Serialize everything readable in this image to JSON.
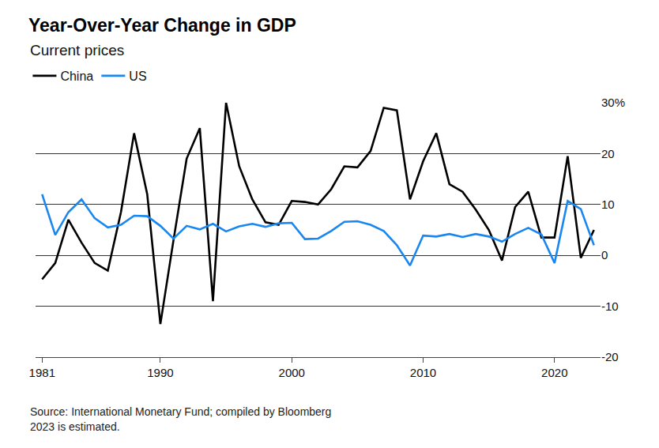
{
  "chart_data": {
    "type": "line",
    "title": "Year-Over-Year Change in GDP",
    "subtitle": "Current prices",
    "annotations": [
      "Source: International Monetary Fund; compiled by Bloomberg",
      "2023 is estimated."
    ],
    "x": [
      1981,
      1982,
      1983,
      1984,
      1985,
      1986,
      1987,
      1988,
      1989,
      1990,
      1991,
      1992,
      1993,
      1994,
      1995,
      1996,
      1997,
      1998,
      1999,
      2000,
      2001,
      2002,
      2003,
      2004,
      2005,
      2006,
      2007,
      2008,
      2009,
      2010,
      2011,
      2012,
      2013,
      2014,
      2015,
      2016,
      2017,
      2018,
      2019,
      2020,
      2021,
      2022,
      2023
    ],
    "series": [
      {
        "name": "China",
        "color": "#000000",
        "values": [
          -4.7,
          -1.5,
          7,
          2.5,
          -1.5,
          -3,
          8.5,
          24,
          12,
          -13.5,
          3,
          19,
          25,
          -9,
          30,
          17.5,
          11,
          6.5,
          6,
          10.7,
          10.5,
          10,
          13,
          17.5,
          17.3,
          20.5,
          29,
          28.5,
          11,
          18.5,
          24,
          14,
          12.5,
          9,
          5,
          -1,
          9.5,
          12.5,
          3.5,
          3.5,
          19.5,
          -0.5,
          5
        ]
      },
      {
        "name": "US",
        "color": "#1a87f0",
        "values": [
          12,
          4,
          8.5,
          11,
          7.3,
          5.5,
          6,
          7.8,
          7.7,
          5.8,
          3.3,
          5.8,
          5.1,
          6.2,
          4.7,
          5.7,
          6.2,
          5.6,
          6.3,
          6.4,
          3.2,
          3.3,
          4.8,
          6.6,
          6.7,
          6,
          4.8,
          2,
          -2,
          3.9,
          3.7,
          4.2,
          3.6,
          4.2,
          3.7,
          2.7,
          4.2,
          5.4,
          4.1,
          -1.5,
          10.7,
          9.1,
          2
        ]
      }
    ],
    "xlim": [
      1980.5,
      2023.5
    ],
    "xticks": [
      1981,
      1990,
      2000,
      2010,
      2020
    ],
    "ylim": [
      -20,
      30
    ],
    "yticks": [
      -20,
      -10,
      0,
      10,
      {
        "value": 20,
        "label": "20"
      },
      {
        "value": 30,
        "label": "30%"
      }
    ],
    "grid": true,
    "legend": "top left"
  }
}
